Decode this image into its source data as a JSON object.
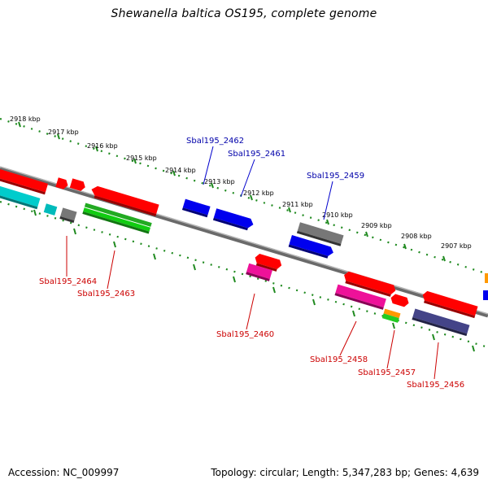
{
  "title": "Shewanella baltica OS195, complete genome",
  "footer": {
    "accession": "Accession: NC_009997",
    "summary": "Topology: circular; Length: 5,347,283 bp; Genes: 4,639"
  },
  "colors": {
    "backbone": "#808080",
    "tick_green": "#1f8a1f",
    "label_top": "#0000aa",
    "label_bottom": "#cc0000",
    "red": "#ff0000",
    "blue": "#0000ee",
    "gray": "#777777",
    "cyan": "#00cccc",
    "green": "#22aa22",
    "magenta": "#ee1199",
    "orange": "#ff9900",
    "navy": "#444488"
  },
  "kbp_labels": [
    "2918 kbp",
    "2917 kbp",
    "2916 kbp",
    "2915 kbp",
    "2914 kbp",
    "2913 kbp",
    "2912 kbp",
    "2911 kbp",
    "2910 kbp",
    "2909 kbp",
    "2908 kbp",
    "2907 kbp"
  ],
  "genes_top": [
    "Sbal195_2462",
    "Sbal195_2461",
    "Sbal195_2459"
  ],
  "genes_bottom": [
    "Sbal195_2464",
    "Sbal195_2463",
    "Sbal195_2460",
    "Sbal195_2458",
    "Sbal195_2457",
    "Sbal195_2456"
  ]
}
